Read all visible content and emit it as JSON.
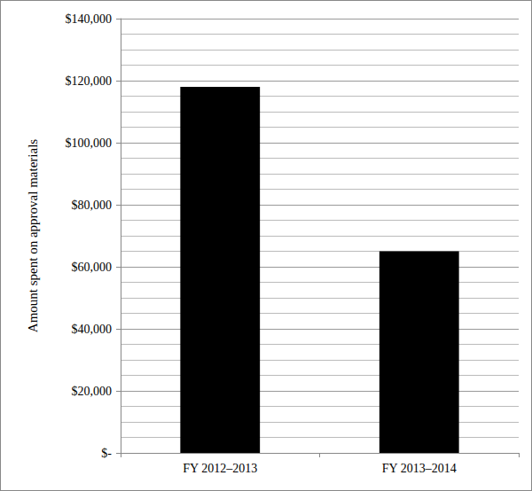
{
  "chart_data": {
    "type": "bar",
    "y_label": "Amount spent on approval materials",
    "categories": [
      "FY 2012–2013",
      "FY 2013–2014"
    ],
    "values": [
      118000,
      65000
    ],
    "color": "#000000",
    "ylim": [
      0,
      140000
    ],
    "yticks": [
      {
        "value": 0,
        "label": "$-"
      },
      {
        "value": 20000,
        "label": "$20,000"
      },
      {
        "value": 40000,
        "label": "$40,000"
      },
      {
        "value": 60000,
        "label": "$60,000"
      },
      {
        "value": 80000,
        "label": "$80,000"
      },
      {
        "value": 100000,
        "label": "$100,000"
      },
      {
        "value": 120000,
        "label": "$120,000"
      },
      {
        "value": 140000,
        "label": "$140,000"
      }
    ],
    "grid": true
  }
}
